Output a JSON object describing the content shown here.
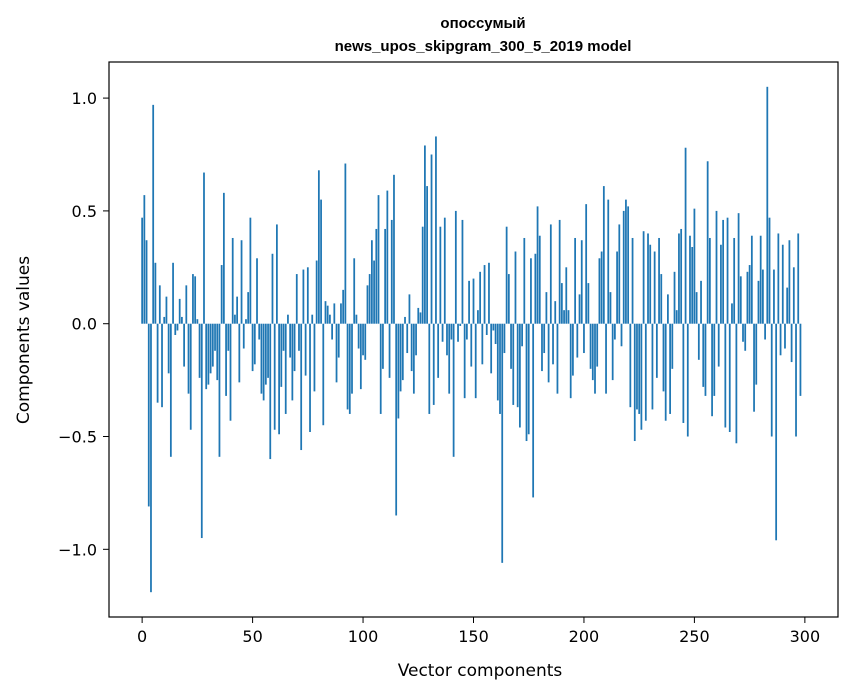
{
  "chart_data": {
    "type": "bar",
    "title_line1": "опоссумый",
    "title_line2": "news_upos_skipgram_300_5_2019 model",
    "xlabel": "Vector components",
    "ylabel": "Components values",
    "xlim": [
      -15,
      315
    ],
    "ylim": [
      -1.3,
      1.16
    ],
    "xticks": [
      {
        "value": 0,
        "label": "0"
      },
      {
        "value": 50,
        "label": "50"
      },
      {
        "value": 100,
        "label": "100"
      },
      {
        "value": 150,
        "label": "150"
      },
      {
        "value": 200,
        "label": "200"
      },
      {
        "value": 250,
        "label": "250"
      },
      {
        "value": 300,
        "label": "300"
      }
    ],
    "yticks": [
      {
        "value": -1.0,
        "label": "−1.0"
      },
      {
        "value": -0.5,
        "label": "−0.5"
      },
      {
        "value": 0.0,
        "label": "0.0"
      },
      {
        "value": 0.5,
        "label": "0.5"
      },
      {
        "value": 1.0,
        "label": "1.0"
      }
    ],
    "bar_color": "#1f77b4",
    "grid": false,
    "values": [
      0.47,
      0.57,
      0.37,
      -0.81,
      -1.19,
      0.97,
      0.27,
      -0.35,
      0.17,
      -0.37,
      0.03,
      0.12,
      -0.22,
      -0.59,
      0.27,
      -0.05,
      -0.03,
      0.11,
      0.03,
      -0.19,
      0.17,
      -0.31,
      -0.47,
      0.22,
      0.21,
      0.02,
      -0.24,
      -0.95,
      0.67,
      -0.29,
      -0.27,
      -0.22,
      -0.19,
      -0.12,
      -0.25,
      -0.59,
      0.26,
      0.58,
      -0.32,
      -0.12,
      -0.43,
      0.38,
      0.04,
      0.12,
      -0.26,
      0.37,
      -0.11,
      0.02,
      0.14,
      0.47,
      -0.21,
      -0.18,
      0.29,
      -0.07,
      -0.31,
      -0.34,
      -0.27,
      -0.24,
      -0.6,
      0.31,
      -0.47,
      0.44,
      -0.49,
      -0.28,
      -0.12,
      -0.4,
      0.04,
      -0.15,
      -0.34,
      -0.21,
      0.22,
      -0.12,
      -0.56,
      0.24,
      -0.23,
      0.25,
      -0.48,
      0.04,
      -0.3,
      0.28,
      0.68,
      0.55,
      -0.45,
      0.1,
      0.08,
      0.04,
      -0.07,
      0.09,
      -0.26,
      -0.15,
      0.09,
      0.15,
      0.71,
      -0.38,
      -0.4,
      -0.31,
      0.29,
      0.04,
      -0.11,
      -0.29,
      -0.14,
      -0.16,
      0.17,
      0.22,
      0.37,
      0.28,
      0.42,
      0.57,
      -0.4,
      -0.2,
      0.42,
      0.59,
      -0.24,
      0.46,
      0.66,
      -0.85,
      -0.42,
      -0.3,
      -0.25,
      0.03,
      -0.13,
      0.13,
      -0.21,
      -0.31,
      -0.14,
      0.07,
      0.05,
      0.43,
      0.79,
      0.61,
      -0.4,
      0.75,
      -0.36,
      0.83,
      -0.24,
      0.43,
      -0.08,
      0.47,
      -0.14,
      -0.31,
      -0.07,
      -0.59,
      0.5,
      -0.08,
      -0.01,
      0.46,
      -0.33,
      -0.07,
      0.19,
      -0.19,
      0.2,
      -0.33,
      0.06,
      0.23,
      -0.18,
      0.26,
      -0.05,
      0.27,
      -0.22,
      -0.03,
      -0.09,
      -0.34,
      -0.4,
      -1.06,
      -0.13,
      0.43,
      0.22,
      -0.2,
      -0.36,
      0.32,
      -0.37,
      -0.46,
      -0.1,
      0.38,
      -0.52,
      -0.49,
      0.29,
      -0.77,
      0.31,
      0.52,
      0.39,
      -0.21,
      -0.13,
      0.14,
      -0.26,
      0.44,
      -0.18,
      0.1,
      -0.31,
      0.46,
      0.18,
      0.06,
      0.25,
      0.06,
      -0.33,
      -0.23,
      0.38,
      -0.15,
      0.13,
      0.37,
      -0.13,
      0.53,
      0.18,
      -0.2,
      -0.25,
      -0.31,
      -0.19,
      0.29,
      0.32,
      0.61,
      -0.31,
      0.55,
      0.14,
      -0.25,
      -0.07,
      0.32,
      0.44,
      -0.1,
      0.5,
      0.55,
      0.52,
      -0.37,
      0.38,
      -0.52,
      -0.38,
      -0.4,
      -0.47,
      0.41,
      -0.43,
      0.4,
      0.35,
      -0.38,
      0.32,
      -0.24,
      0.38,
      0.22,
      -0.3,
      -0.43,
      0.13,
      -0.4,
      -0.2,
      0.23,
      0.06,
      0.4,
      0.42,
      -0.44,
      0.78,
      -0.5,
      0.39,
      0.34,
      0.51,
      0.14,
      -0.16,
      0.19,
      -0.28,
      -0.32,
      0.72,
      0.38,
      -0.41,
      -0.32,
      0.5,
      -0.19,
      0.35,
      0.46,
      -0.46,
      0.47,
      -0.48,
      0.09,
      0.38,
      -0.53,
      0.49,
      0.21,
      -0.08,
      -0.12,
      0.23,
      0.26,
      0.39,
      -0.39,
      -0.27,
      0.19,
      0.39,
      0.24,
      -0.07,
      1.05,
      0.47,
      -0.5,
      0.24,
      -0.96,
      0.4,
      -0.14,
      0.35,
      -0.11,
      0.16,
      0.37,
      -0.17,
      0.25,
      -0.5,
      0.4,
      -0.32
    ]
  }
}
